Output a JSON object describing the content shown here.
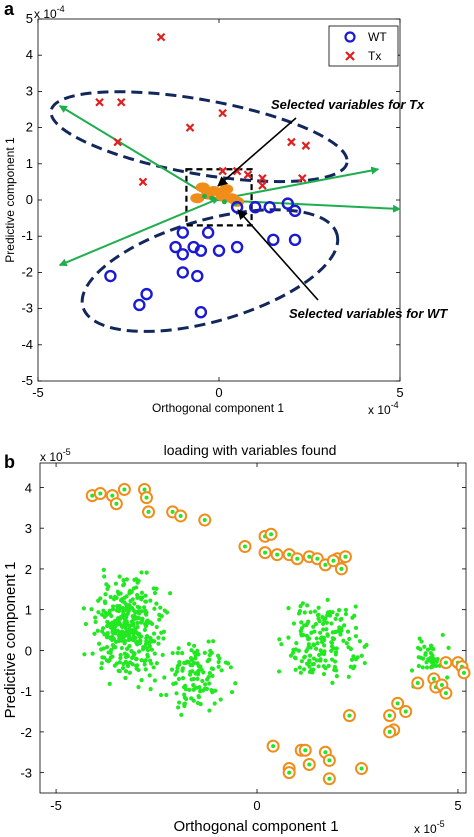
{
  "chart_data": [
    {
      "type": "scatter",
      "panel_label": "a",
      "title": "",
      "xlabel": "Orthogonal component 1",
      "ylabel": "Predictive component 1",
      "x_exponent": "x 10",
      "x_exponent_power": "-4",
      "y_exponent": "x 10",
      "y_exponent_power": "-4",
      "xlim": [
        -5,
        5
      ],
      "ylim": [
        -5,
        5
      ],
      "xticks": [
        "-5",
        "0",
        "5"
      ],
      "yticks": [
        "5",
        "4",
        "3",
        "2",
        "1",
        "0",
        "-1",
        "-2",
        "-3",
        "-4",
        "-5"
      ],
      "legend": {
        "placement": "top-right",
        "entries": [
          "WT",
          "Tx"
        ]
      },
      "series": [
        {
          "name": "WT",
          "marker": "open-circle",
          "color": "#1a1ad4",
          "points": [
            [
              -1.0,
              -0.9
            ],
            [
              -1.0,
              -1.5
            ],
            [
              -0.7,
              -1.3
            ],
            [
              -0.3,
              -0.9
            ],
            [
              -0.5,
              -1.4
            ],
            [
              0.0,
              -1.4
            ],
            [
              -1.0,
              -2.0
            ],
            [
              -1.2,
              -1.3
            ],
            [
              0.5,
              -1.3
            ],
            [
              1.5,
              -1.1
            ],
            [
              2.1,
              -1.1
            ],
            [
              2.1,
              -0.3
            ],
            [
              1.0,
              -0.2
            ],
            [
              -0.6,
              -2.1
            ],
            [
              -3.0,
              -2.1
            ],
            [
              -2.0,
              -2.6
            ],
            [
              -2.2,
              -2.9
            ],
            [
              -0.5,
              -3.1
            ],
            [
              1.4,
              -0.2
            ],
            [
              1.9,
              -0.1
            ],
            [
              0.5,
              -0.2
            ]
          ]
        },
        {
          "name": "Tx",
          "marker": "x",
          "color": "#e02020",
          "points": [
            [
              -1.6,
              4.5
            ],
            [
              -3.3,
              2.7
            ],
            [
              -2.7,
              2.7
            ],
            [
              -0.8,
              2.0
            ],
            [
              0.1,
              2.4
            ],
            [
              -2.8,
              1.6
            ],
            [
              2.0,
              1.6
            ],
            [
              2.4,
              1.5
            ],
            [
              0.1,
              0.8
            ],
            [
              0.5,
              0.8
            ],
            [
              0.8,
              0.7
            ],
            [
              1.2,
              0.6
            ],
            [
              2.3,
              0.6
            ],
            [
              1.2,
              0.4
            ],
            [
              -2.1,
              0.5
            ]
          ]
        }
      ],
      "annotations": [
        "Selected variables for Tx",
        "Selected variables for WT"
      ],
      "line_colors": {
        "loadings": "#1fae4e",
        "ellipses": "#12285c",
        "selected": "#f08c1a"
      }
    },
    {
      "type": "scatter",
      "panel_label": "b",
      "title": "loading with variables found",
      "xlabel": "Orthogonal component 1",
      "ylabel": "Predictive component 1",
      "x_exponent": "x 10",
      "x_exponent_power": "-5",
      "y_exponent": "x 10",
      "y_exponent_power": "-5",
      "xlim": [
        -5.4,
        5.2
      ],
      "ylim": [
        -3.5,
        4.6
      ],
      "xticks": [
        "-5",
        "0",
        "5"
      ],
      "yticks": [
        "4",
        "3",
        "2",
        "1",
        "0",
        "-1",
        "-2",
        "-3"
      ],
      "series": [
        {
          "name": "",
          "marker": "filled-dot",
          "color": "#22e822",
          "description_count": 700
        },
        {
          "name": "",
          "marker": "orange-circle",
          "color": "#f08c1a",
          "points": [
            [
              -4.1,
              3.8
            ],
            [
              -3.9,
              3.85
            ],
            [
              -3.6,
              3.8
            ],
            [
              -3.3,
              3.95
            ],
            [
              -2.8,
              3.95
            ],
            [
              -2.75,
              3.75
            ],
            [
              -3.5,
              3.6
            ],
            [
              -2.7,
              3.4
            ],
            [
              -2.1,
              3.4
            ],
            [
              -1.9,
              3.3
            ],
            [
              -1.3,
              3.2
            ],
            [
              0.2,
              2.8
            ],
            [
              0.35,
              2.85
            ],
            [
              -0.3,
              2.55
            ],
            [
              0.2,
              2.4
            ],
            [
              0.5,
              2.35
            ],
            [
              0.8,
              2.35
            ],
            [
              1.0,
              2.25
            ],
            [
              1.3,
              2.3
            ],
            [
              1.5,
              2.25
            ],
            [
              1.7,
              2.1
            ],
            [
              2.0,
              2.25
            ],
            [
              2.2,
              2.3
            ],
            [
              1.9,
              2.2
            ],
            [
              2.1,
              2.0
            ],
            [
              4.7,
              -0.3
            ],
            [
              5.0,
              -0.3
            ],
            [
              5.1,
              -0.4
            ],
            [
              5.15,
              -0.55
            ],
            [
              4.4,
              -0.7
            ],
            [
              4.45,
              -0.9
            ],
            [
              4.6,
              -0.85
            ],
            [
              4.7,
              -1.05
            ],
            [
              4.0,
              -0.8
            ],
            [
              3.5,
              -1.3
            ],
            [
              3.3,
              -1.6
            ],
            [
              3.7,
              -1.5
            ],
            [
              3.4,
              -1.95
            ],
            [
              3.3,
              -2.0
            ],
            [
              2.3,
              -1.6
            ],
            [
              0.4,
              -2.35
            ],
            [
              1.1,
              -2.45
            ],
            [
              1.2,
              -2.45
            ],
            [
              1.7,
              -2.5
            ],
            [
              1.8,
              -2.7
            ],
            [
              1.3,
              -2.8
            ],
            [
              0.8,
              -2.9
            ],
            [
              0.8,
              -3.0
            ],
            [
              1.8,
              -3.15
            ],
            [
              2.6,
              -2.9
            ]
          ]
        }
      ]
    }
  ]
}
